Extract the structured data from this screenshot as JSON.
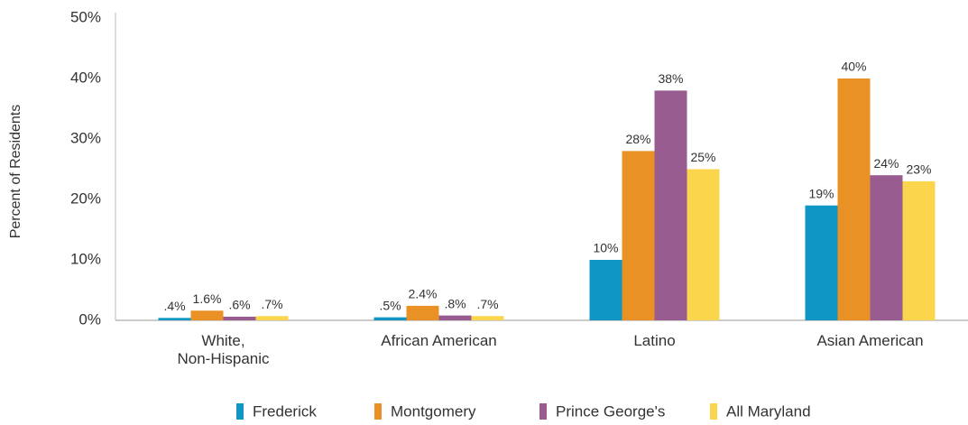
{
  "chart_data": {
    "type": "bar",
    "y_label": "Percent of Residents",
    "categories": [
      "White,\nNon-Hispanic",
      "African American",
      "Latino",
      "Asian American"
    ],
    "series": [
      {
        "name": "Frederick",
        "color": "#0f96c4",
        "values": [
          0.4,
          0.5,
          10,
          19
        ],
        "value_labels": [
          ".4%",
          ".5%",
          "10%",
          "19%"
        ]
      },
      {
        "name": "Montgomery",
        "color": "#ea9126",
        "values": [
          1.6,
          2.4,
          28,
          40
        ],
        "value_labels": [
          "1.6%",
          "2.4%",
          "28%",
          "40%"
        ]
      },
      {
        "name": "Prince George's",
        "color": "#985c91",
        "values": [
          0.6,
          0.8,
          38,
          24
        ],
        "value_labels": [
          ".6%",
          ".8%",
          "38%",
          "24%"
        ]
      },
      {
        "name": "All Maryland",
        "color": "#fbd54c",
        "values": [
          0.7,
          0.7,
          25,
          23
        ],
        "value_labels": [
          ".7%",
          ".7%",
          "25%",
          "23%"
        ]
      }
    ],
    "ylim": [
      0,
      50
    ],
    "yticks": [
      {
        "value": 0,
        "label": "0%"
      },
      {
        "value": 10,
        "label": "10%"
      },
      {
        "value": 20,
        "label": "20%"
      },
      {
        "value": 30,
        "label": "30%"
      },
      {
        "value": 40,
        "label": "40%"
      },
      {
        "value": 50,
        "label": "50%"
      }
    ],
    "legend": "bottom"
  }
}
